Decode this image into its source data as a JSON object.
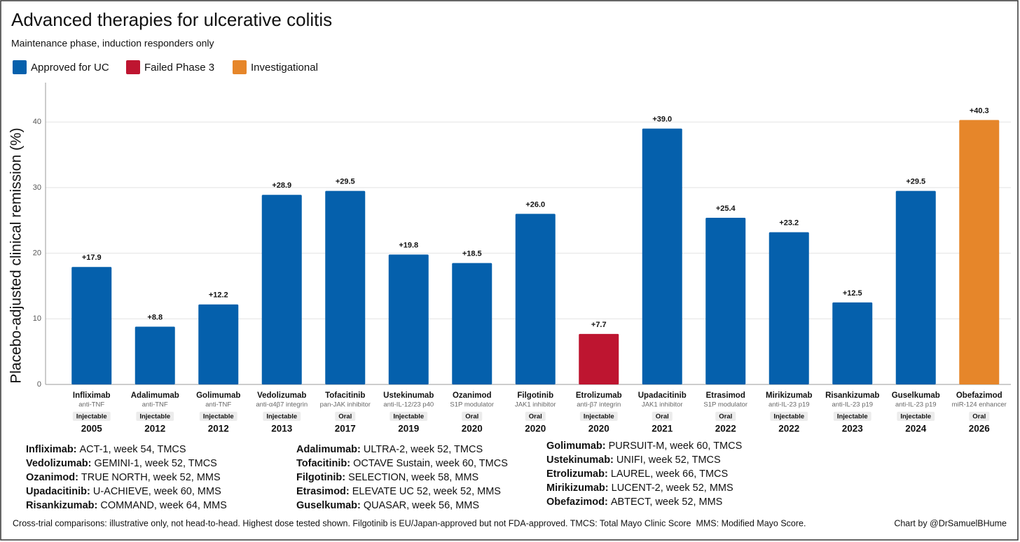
{
  "chart_data": {
    "type": "bar",
    "title": "Advanced therapies for ulcerative colitis",
    "subtitle": "Maintenance phase, induction responders only",
    "y_label": "Placebo-adjusted clinical remission (%)",
    "legend": [
      {
        "name": "Approved for UC",
        "color": "#0560ac"
      },
      {
        "name": "Failed Phase 3",
        "color": "#be1530"
      },
      {
        "name": "Investigational",
        "color": "#e6862a"
      }
    ],
    "categories": [
      "Infliximab",
      "Adalimumab",
      "Golimumab",
      "Vedolizumab",
      "Tofacitinib",
      "Ustekinumab",
      "Ozanimod",
      "Filgotinib",
      "Etrolizumab",
      "Upadacitinib",
      "Etrasimod",
      "Mirikizumab",
      "Risankizumab",
      "Guselkumab",
      "Obefazimod"
    ],
    "mechanisms": [
      "anti-TNF",
      "anti-TNF",
      "anti-TNF",
      "anti-α4β7 integrin",
      "pan-JAK inhibitor",
      "anti-IL-12/23 p40",
      "S1P modulator",
      "JAK1 inhibitor",
      "anti-β7 integrin",
      "JAK1 inhibitor",
      "S1P modulator",
      "anti-IL-23 p19",
      "anti-IL-23 p19",
      "anti-IL-23 p19",
      "miR-124 enhancer"
    ],
    "routes": [
      "Injectable",
      "Injectable",
      "Injectable",
      "Injectable",
      "Oral",
      "Injectable",
      "Oral",
      "Oral",
      "Injectable",
      "Oral",
      "Oral",
      "Injectable",
      "Injectable",
      "Injectable",
      "Oral"
    ],
    "years": [
      "2005",
      "2012",
      "2012",
      "2013",
      "2017",
      "2019",
      "2020",
      "2020",
      "2020",
      "2021",
      "2022",
      "2022",
      "2023",
      "2024",
      "2026"
    ],
    "values": [
      17.9,
      8.8,
      12.2,
      28.9,
      29.5,
      19.8,
      18.5,
      26.0,
      7.7,
      39.0,
      25.4,
      23.2,
      12.5,
      29.5,
      40.3
    ],
    "value_labels": [
      "+17.9",
      "+8.8",
      "+12.2",
      "+28.9",
      "+29.5",
      "+19.8",
      "+18.5",
      "+26.0",
      "+7.7",
      "+39.0",
      "+25.4",
      "+23.2",
      "+12.5",
      "+29.5",
      "+40.3"
    ],
    "colors": [
      "#0560ac",
      "#0560ac",
      "#0560ac",
      "#0560ac",
      "#0560ac",
      "#0560ac",
      "#0560ac",
      "#0560ac",
      "#be1530",
      "#0560ac",
      "#0560ac",
      "#0560ac",
      "#0560ac",
      "#0560ac",
      "#e6862a"
    ],
    "ylim": [
      0,
      46
    ],
    "yticks": [
      0,
      10,
      20,
      30,
      40
    ],
    "grid": true,
    "notes": [
      [
        {
          "drug": "Infliximab:",
          "trial": "ACT-1, week 54, TMCS"
        },
        {
          "drug": "Vedolizumab:",
          "trial": "GEMINI-1, week 52, TMCS"
        },
        {
          "drug": "Ozanimod:",
          "trial": "TRUE NORTH, week 52, MMS"
        },
        {
          "drug": "Upadacitinib:",
          "trial": "U-ACHIEVE, week 60, MMS"
        },
        {
          "drug": "Risankizumab:",
          "trial": "COMMAND, week 64, MMS"
        }
      ],
      [
        {
          "drug": "Adalimumab:",
          "trial": "ULTRA-2, week 52, TMCS"
        },
        {
          "drug": "Tofacitinib:",
          "trial": "OCTAVE Sustain, week 60, TMCS"
        },
        {
          "drug": "Filgotinib:",
          "trial": "SELECTION, week 58, MMS"
        },
        {
          "drug": "Etrasimod:",
          "trial": "ELEVATE UC 52, week 52, MMS"
        },
        {
          "drug": "Guselkumab:",
          "trial": "QUASAR, week 56, MMS"
        }
      ],
      [
        {
          "drug": "Golimumab:",
          "trial": "PURSUIT-M, week 60, TMCS"
        },
        {
          "drug": "Ustekinumab:",
          "trial": "UNIFI, week 52, TMCS"
        },
        {
          "drug": "Etrolizumab:",
          "trial": "LAUREL, week 66, TMCS"
        },
        {
          "drug": "Mirikizumab:",
          "trial": "LUCENT-2, week 52, MMS"
        },
        {
          "drug": "Obefazimod:",
          "trial": "ABTECT, week 52, MMS"
        }
      ]
    ],
    "footnote": "Cross-trial comparisons: illustrative only, not head-to-head. Highest dose tested shown. Filgotinib is EU/Japan-approved but not FDA-approved. TMCS: Total Mayo Clinic Score  MMS: Modified Mayo Score.",
    "credit": "Chart by @DrSamuelBHume"
  }
}
